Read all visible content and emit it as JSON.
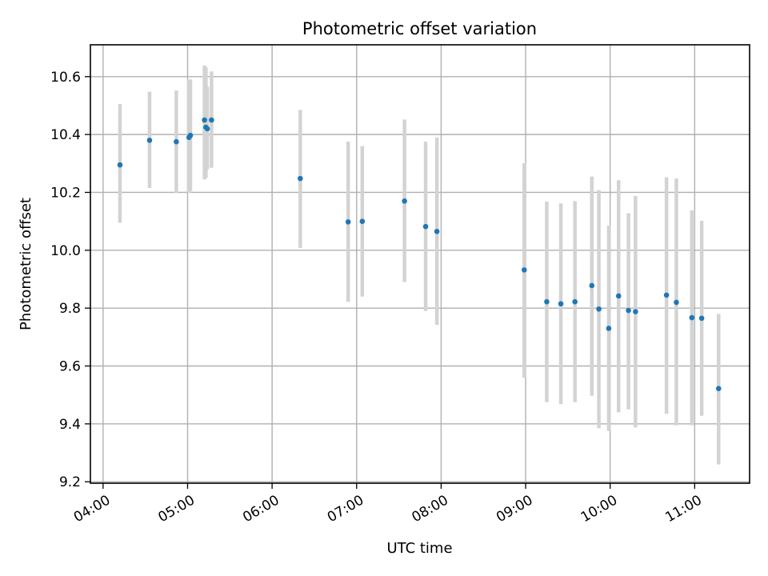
{
  "chart_data": {
    "type": "scatter",
    "title": "Photometric offset variation",
    "xlabel": "UTC time",
    "ylabel": "Photometric offset",
    "xlim": [
      "03:51",
      "11:39"
    ],
    "ylim": [
      9.195,
      10.71
    ],
    "xticks": [
      "04:00",
      "05:00",
      "06:00",
      "07:00",
      "08:00",
      "09:00",
      "10:00",
      "11:00"
    ],
    "yticks": [
      9.2,
      9.4,
      9.6,
      9.8,
      10.0,
      10.2,
      10.4,
      10.6
    ],
    "ytick_labels": [
      "9.2",
      "9.4",
      "9.6",
      "9.8",
      "10.0",
      "10.2",
      "10.4",
      "10.6"
    ],
    "grid": true,
    "point_color": "#1f77b4",
    "errorbar_color": "#d3d3d3",
    "points": [
      {
        "x": "04:12",
        "y": 10.295,
        "lo": 10.095,
        "hi": 10.505
      },
      {
        "x": "04:33",
        "y": 10.38,
        "lo": 10.215,
        "hi": 10.548
      },
      {
        "x": "04:52",
        "y": 10.375,
        "lo": 10.197,
        "hi": 10.552
      },
      {
        "x": "05:01",
        "y": 10.39,
        "lo": 10.198,
        "hi": 10.59
      },
      {
        "x": "05:02",
        "y": 10.397,
        "lo": 10.205,
        "hi": 10.59
      },
      {
        "x": "05:12",
        "y": 10.45,
        "lo": 10.245,
        "hi": 10.638
      },
      {
        "x": "05:13",
        "y": 10.425,
        "lo": 10.25,
        "hi": 10.632
      },
      {
        "x": "05:14",
        "y": 10.42,
        "lo": 10.28,
        "hi": 10.565
      },
      {
        "x": "05:17",
        "y": 10.45,
        "lo": 10.285,
        "hi": 10.618
      },
      {
        "x": "06:20",
        "y": 10.248,
        "lo": 10.008,
        "hi": 10.485
      },
      {
        "x": "06:54",
        "y": 10.098,
        "lo": 9.822,
        "hi": 10.375
      },
      {
        "x": "07:04",
        "y": 10.1,
        "lo": 9.84,
        "hi": 10.36
      },
      {
        "x": "07:34",
        "y": 10.17,
        "lo": 9.89,
        "hi": 10.452
      },
      {
        "x": "07:49",
        "y": 10.082,
        "lo": 9.79,
        "hi": 10.375
      },
      {
        "x": "07:57",
        "y": 10.065,
        "lo": 9.742,
        "hi": 10.39
      },
      {
        "x": "08:59",
        "y": 9.932,
        "lo": 9.56,
        "hi": 10.3
      },
      {
        "x": "09:15",
        "y": 9.822,
        "lo": 9.475,
        "hi": 10.168
      },
      {
        "x": "09:25",
        "y": 9.815,
        "lo": 9.468,
        "hi": 10.162
      },
      {
        "x": "09:35",
        "y": 9.822,
        "lo": 9.475,
        "hi": 10.17
      },
      {
        "x": "09:47",
        "y": 9.878,
        "lo": 9.497,
        "hi": 10.255
      },
      {
        "x": "09:52",
        "y": 9.797,
        "lo": 9.385,
        "hi": 10.208
      },
      {
        "x": "09:59",
        "y": 9.73,
        "lo": 9.375,
        "hi": 10.085
      },
      {
        "x": "10:06",
        "y": 9.842,
        "lo": 9.44,
        "hi": 10.242
      },
      {
        "x": "10:13",
        "y": 9.792,
        "lo": 9.45,
        "hi": 10.128
      },
      {
        "x": "10:18",
        "y": 9.788,
        "lo": 9.388,
        "hi": 10.188
      },
      {
        "x": "10:40",
        "y": 9.845,
        "lo": 9.435,
        "hi": 10.252
      },
      {
        "x": "10:47",
        "y": 9.82,
        "lo": 9.395,
        "hi": 10.248
      },
      {
        "x": "10:58",
        "y": 9.767,
        "lo": 9.395,
        "hi": 10.138
      },
      {
        "x": "11:05",
        "y": 9.765,
        "lo": 9.428,
        "hi": 10.102
      },
      {
        "x": "11:17",
        "y": 9.522,
        "lo": 9.26,
        "hi": 9.78
      }
    ]
  }
}
